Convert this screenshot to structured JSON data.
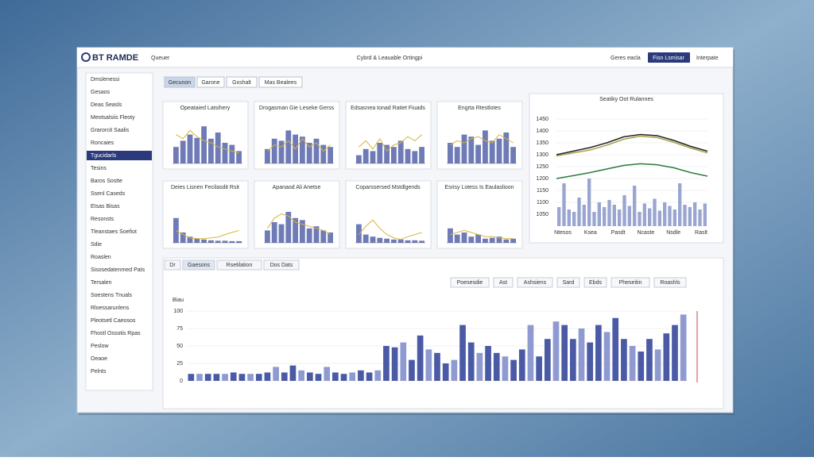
{
  "header": {
    "logo": "BT RAMDE",
    "nav": "Queuer",
    "title": "Cybrd & Leauable Ortingpi",
    "link": "Geres eacla",
    "button": "Fisn Lsmisar",
    "user": "Interpate"
  },
  "sidebar": {
    "items": [
      "Dmslenessi",
      "Gesaos",
      "Deas Seasls",
      "Meotsalsiis Fleoty",
      "Grarorcit Saalis",
      "Roncaies",
      "Tgucidarls",
      "Tesins",
      "Baros Sostte",
      "Ssenl Caseds",
      "Etsas Bisas",
      "Resonsts",
      "Tleanstaes Soefiot",
      "Sdie",
      "Roaslen",
      "Sisosedatenmed Pats",
      "Tersalen",
      "Soestens Tnuals",
      "Rloessarunlens",
      "Pleotsetl Caeosos",
      "Fhostl Ossotis Rpas",
      "Peslow",
      "Oeaoe",
      "Pelnts"
    ]
  },
  "tabs": [
    "Gecunon",
    "Garone",
    "Gxshalt",
    "Mas Bealees"
  ],
  "cards": [
    {
      "title": "Opeataied Latsihery",
      "values": [
        40,
        55,
        70,
        62,
        90,
        60,
        75,
        50,
        45,
        30
      ],
      "line": [
        70,
        60,
        80,
        65,
        55,
        50,
        40,
        35,
        30,
        25
      ]
    },
    {
      "title": "Drogasman Gie Leseke Gerss",
      "values": [
        35,
        60,
        55,
        80,
        70,
        65,
        50,
        60,
        45,
        40
      ],
      "line": [
        30,
        45,
        40,
        55,
        35,
        60,
        40,
        50,
        30,
        45
      ]
    },
    {
      "title": "Edsasnea tonad Ratiet Fiuads",
      "values": [
        20,
        35,
        30,
        50,
        45,
        40,
        55,
        35,
        30,
        40
      ],
      "line": [
        40,
        55,
        35,
        60,
        30,
        45,
        50,
        65,
        55,
        70
      ]
    },
    {
      "title": "Engrta Rtestlotes",
      "values": [
        50,
        40,
        70,
        65,
        45,
        80,
        55,
        60,
        75,
        40
      ],
      "line": [
        45,
        55,
        50,
        60,
        65,
        55,
        50,
        70,
        60,
        50
      ]
    },
    {
      "title": "Deies Lisnen Fecilasdit Rsit",
      "values": [
        60,
        25,
        15,
        10,
        8,
        6,
        5,
        5,
        4,
        4
      ],
      "line": [
        30,
        20,
        12,
        10,
        10,
        12,
        14,
        20,
        25,
        30
      ]
    },
    {
      "title": "Apanaod Ali Anetse",
      "values": [
        30,
        50,
        45,
        75,
        60,
        55,
        35,
        40,
        30,
        25
      ],
      "line": [
        35,
        60,
        70,
        65,
        50,
        45,
        40,
        35,
        30,
        20
      ]
    },
    {
      "title": "Coparssersed Mstdlgends",
      "values": [
        45,
        20,
        15,
        12,
        10,
        8,
        8,
        6,
        6,
        5
      ],
      "line": [
        20,
        40,
        55,
        35,
        20,
        12,
        8,
        15,
        20,
        25
      ]
    },
    {
      "title": "Esrisy Lotess Is Eaulaslioon",
      "values": [
        35,
        20,
        25,
        15,
        20,
        10,
        12,
        15,
        8,
        10
      ],
      "line": [
        20,
        25,
        30,
        25,
        20,
        15,
        15,
        12,
        10,
        10
      ]
    }
  ],
  "main_chart": {
    "title": "Seatiky Oot Rulannes",
    "ylim": [
      1000,
      1450
    ],
    "yticks": [
      1450,
      1400,
      1350,
      1300,
      1250,
      1200,
      1150,
      1100,
      1050
    ],
    "lines": [
      {
        "color": "#222222",
        "values": [
          1300,
          1315,
          1330,
          1350,
          1375,
          1385,
          1380,
          1360,
          1335,
          1315
        ]
      },
      {
        "color": "#a7a34a",
        "values": [
          1295,
          1308,
          1320,
          1340,
          1365,
          1378,
          1372,
          1352,
          1328,
          1308
        ]
      },
      {
        "color": "#2f7a3a",
        "values": [
          1200,
          1212,
          1225,
          1240,
          1255,
          1262,
          1258,
          1245,
          1225,
          1210
        ]
      }
    ],
    "bars": [
      1080,
      1180,
      1070,
      1060,
      1120,
      1090,
      1200,
      1060,
      1100,
      1080,
      1110,
      1090,
      1070,
      1130,
      1085,
      1170,
      1060,
      1095,
      1075,
      1115,
      1065,
      1100,
      1085,
      1070,
      1180,
      1090,
      1080,
      1100,
      1070,
      1095
    ],
    "xlabels": [
      "Ntesos",
      "Ksea",
      "Pasdt",
      "Ncaste",
      "Nsdle",
      "Raslt"
    ]
  },
  "bottom": {
    "tabs": [
      "Dr",
      "Gaesons",
      "Rsetilation",
      "Dos Dats"
    ],
    "toolbar": [
      "Poesesdie",
      "Ast",
      "Ashsiens",
      "Sard",
      "Ebds",
      "Pheseitin",
      "Roashls"
    ],
    "dropdown": "Biau",
    "ylim": [
      0,
      100
    ],
    "yticks": [
      100,
      75,
      50,
      25,
      0
    ],
    "values": [
      10,
      10,
      10,
      10,
      10,
      12,
      10,
      10,
      10,
      12,
      20,
      12,
      22,
      15,
      12,
      10,
      20,
      12,
      10,
      12,
      15,
      12,
      15,
      50,
      48,
      55,
      30,
      65,
      45,
      40,
      25,
      30,
      80,
      55,
      40,
      50,
      40,
      35,
      30,
      45,
      80,
      35,
      60,
      85,
      80,
      60,
      75,
      55,
      80,
      70,
      90,
      60,
      50,
      42,
      60,
      45,
      68,
      80,
      95
    ]
  }
}
